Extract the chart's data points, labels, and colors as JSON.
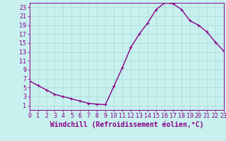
{
  "x_plot": [
    0,
    1,
    2,
    3,
    4,
    5,
    6,
    7,
    8,
    9,
    10,
    11,
    12,
    13,
    14,
    15,
    16,
    17,
    18,
    19,
    20,
    21,
    22,
    23
  ],
  "y_plot": [
    6.5,
    5.5,
    4.5,
    3.5,
    3.0,
    2.5,
    2.0,
    1.5,
    1.3,
    1.2,
    5.3,
    9.5,
    14.0,
    17.0,
    19.5,
    22.5,
    24.0,
    23.8,
    22.5,
    20.0,
    19.0,
    17.5,
    15.2,
    13.2
  ],
  "line_color": "#880088",
  "marker": "+",
  "marker_size": 3,
  "marker_linewidth": 0.8,
  "background_color": "#c8f0ee",
  "plot_bg_color": "#c8f0ee",
  "grid_color": "#aaddda",
  "xlabel": "Windchill (Refroidissement éolien,°C)",
  "xlim": [
    0,
    23
  ],
  "ylim": [
    0,
    24
  ],
  "yticks": [
    1,
    3,
    5,
    7,
    9,
    11,
    13,
    15,
    17,
    19,
    21,
    23
  ],
  "xticks": [
    0,
    1,
    2,
    3,
    4,
    5,
    6,
    7,
    8,
    9,
    10,
    11,
    12,
    13,
    14,
    15,
    16,
    17,
    18,
    19,
    20,
    21,
    22,
    23
  ],
  "tick_color": "#880088",
  "xlabel_color": "#880088",
  "xlabel_fontsize": 7,
  "tick_fontsize": 6,
  "line_width": 1.0
}
